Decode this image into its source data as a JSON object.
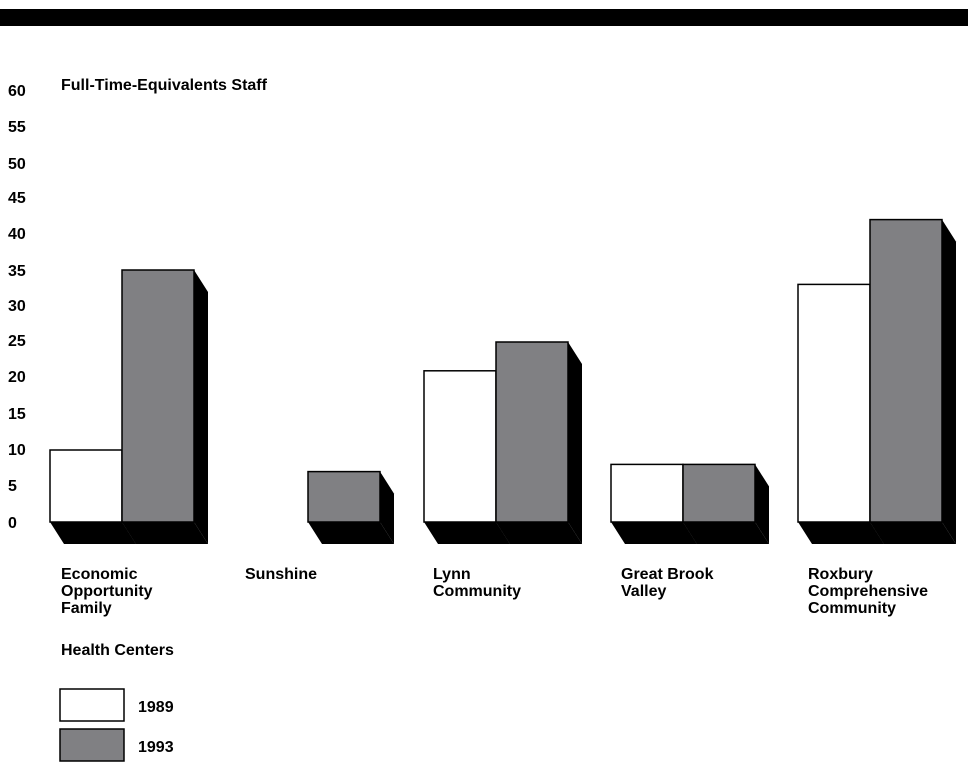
{
  "chart_data": {
    "type": "bar",
    "ylabel": "Full-Time-Equivalents Staff",
    "ylim": [
      0,
      60
    ],
    "yticks": [
      0,
      5,
      10,
      15,
      20,
      25,
      30,
      35,
      40,
      45,
      50,
      55,
      60
    ],
    "categories": [
      [
        "Economic",
        "Opportunity",
        "Family"
      ],
      [
        "Sunshine"
      ],
      [
        "Lynn",
        "Community"
      ],
      [
        "Great Brook",
        "Valley"
      ],
      [
        "Roxbury",
        "Comprehensive",
        "Community"
      ]
    ],
    "note": "Health Centers",
    "series": [
      {
        "name": "1989",
        "values": [
          10,
          null,
          21,
          8,
          33
        ]
      },
      {
        "name": "1993",
        "values": [
          35,
          7,
          25,
          8,
          42
        ]
      }
    ],
    "colors": {
      "1989": "#ffffff",
      "1993": "#808083",
      "shadow": "#000000",
      "edge": "#000000"
    },
    "legend_position": "bottom-left"
  }
}
